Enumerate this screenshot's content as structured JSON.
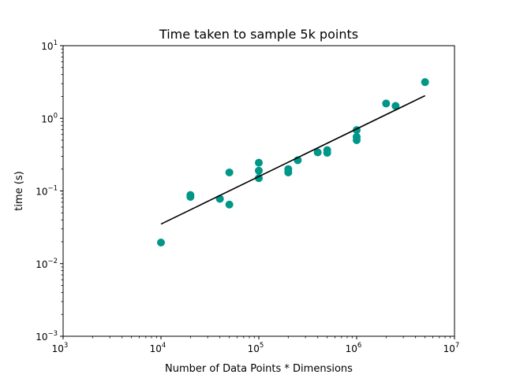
{
  "chart_data": {
    "type": "scatter",
    "title": "Time taken to sample 5k points",
    "xlabel": "Number of Data Points * Dimensions",
    "ylabel": "time (s)",
    "xscale": "log",
    "yscale": "log",
    "xlim": [
      1000,
      10000000
    ],
    "ylim": [
      0.001,
      10
    ],
    "grid": false,
    "x_ticks": [
      {
        "base": "10",
        "exp": "3",
        "value": 1000
      },
      {
        "base": "10",
        "exp": "4",
        "value": 10000
      },
      {
        "base": "10",
        "exp": "5",
        "value": 100000
      },
      {
        "base": "10",
        "exp": "6",
        "value": 1000000
      },
      {
        "base": "10",
        "exp": "7",
        "value": 10000000
      }
    ],
    "y_ticks": [
      {
        "base": "10",
        "exp": "−3",
        "value": 0.001
      },
      {
        "base": "10",
        "exp": "−2",
        "value": 0.01
      },
      {
        "base": "10",
        "exp": "−1",
        "value": 0.1
      },
      {
        "base": "10",
        "exp": "0",
        "value": 1
      },
      {
        "base": "10",
        "exp": "1",
        "value": 10
      }
    ],
    "series": [
      {
        "type": "scatter",
        "color": "#009688",
        "points": [
          {
            "x": 10000,
            "y": 0.0195
          },
          {
            "x": 20000,
            "y": 0.083
          },
          {
            "x": 20000,
            "y": 0.088
          },
          {
            "x": 40000,
            "y": 0.078
          },
          {
            "x": 50000,
            "y": 0.065
          },
          {
            "x": 50000,
            "y": 0.18
          },
          {
            "x": 100000,
            "y": 0.15
          },
          {
            "x": 100000,
            "y": 0.19
          },
          {
            "x": 100000,
            "y": 0.245
          },
          {
            "x": 200000,
            "y": 0.18
          },
          {
            "x": 200000,
            "y": 0.2
          },
          {
            "x": 250000,
            "y": 0.265
          },
          {
            "x": 400000,
            "y": 0.34
          },
          {
            "x": 500000,
            "y": 0.335
          },
          {
            "x": 500000,
            "y": 0.365
          },
          {
            "x": 1000000,
            "y": 0.5
          },
          {
            "x": 1000000,
            "y": 0.555
          },
          {
            "x": 1000000,
            "y": 0.69
          },
          {
            "x": 2000000,
            "y": 1.6
          },
          {
            "x": 2500000,
            "y": 1.48
          },
          {
            "x": 5000000,
            "y": 3.15
          }
        ]
      },
      {
        "type": "line",
        "color": "#000000",
        "points": [
          {
            "x": 10000,
            "y": 0.035
          },
          {
            "x": 5000000,
            "y": 2.05
          }
        ]
      }
    ]
  }
}
